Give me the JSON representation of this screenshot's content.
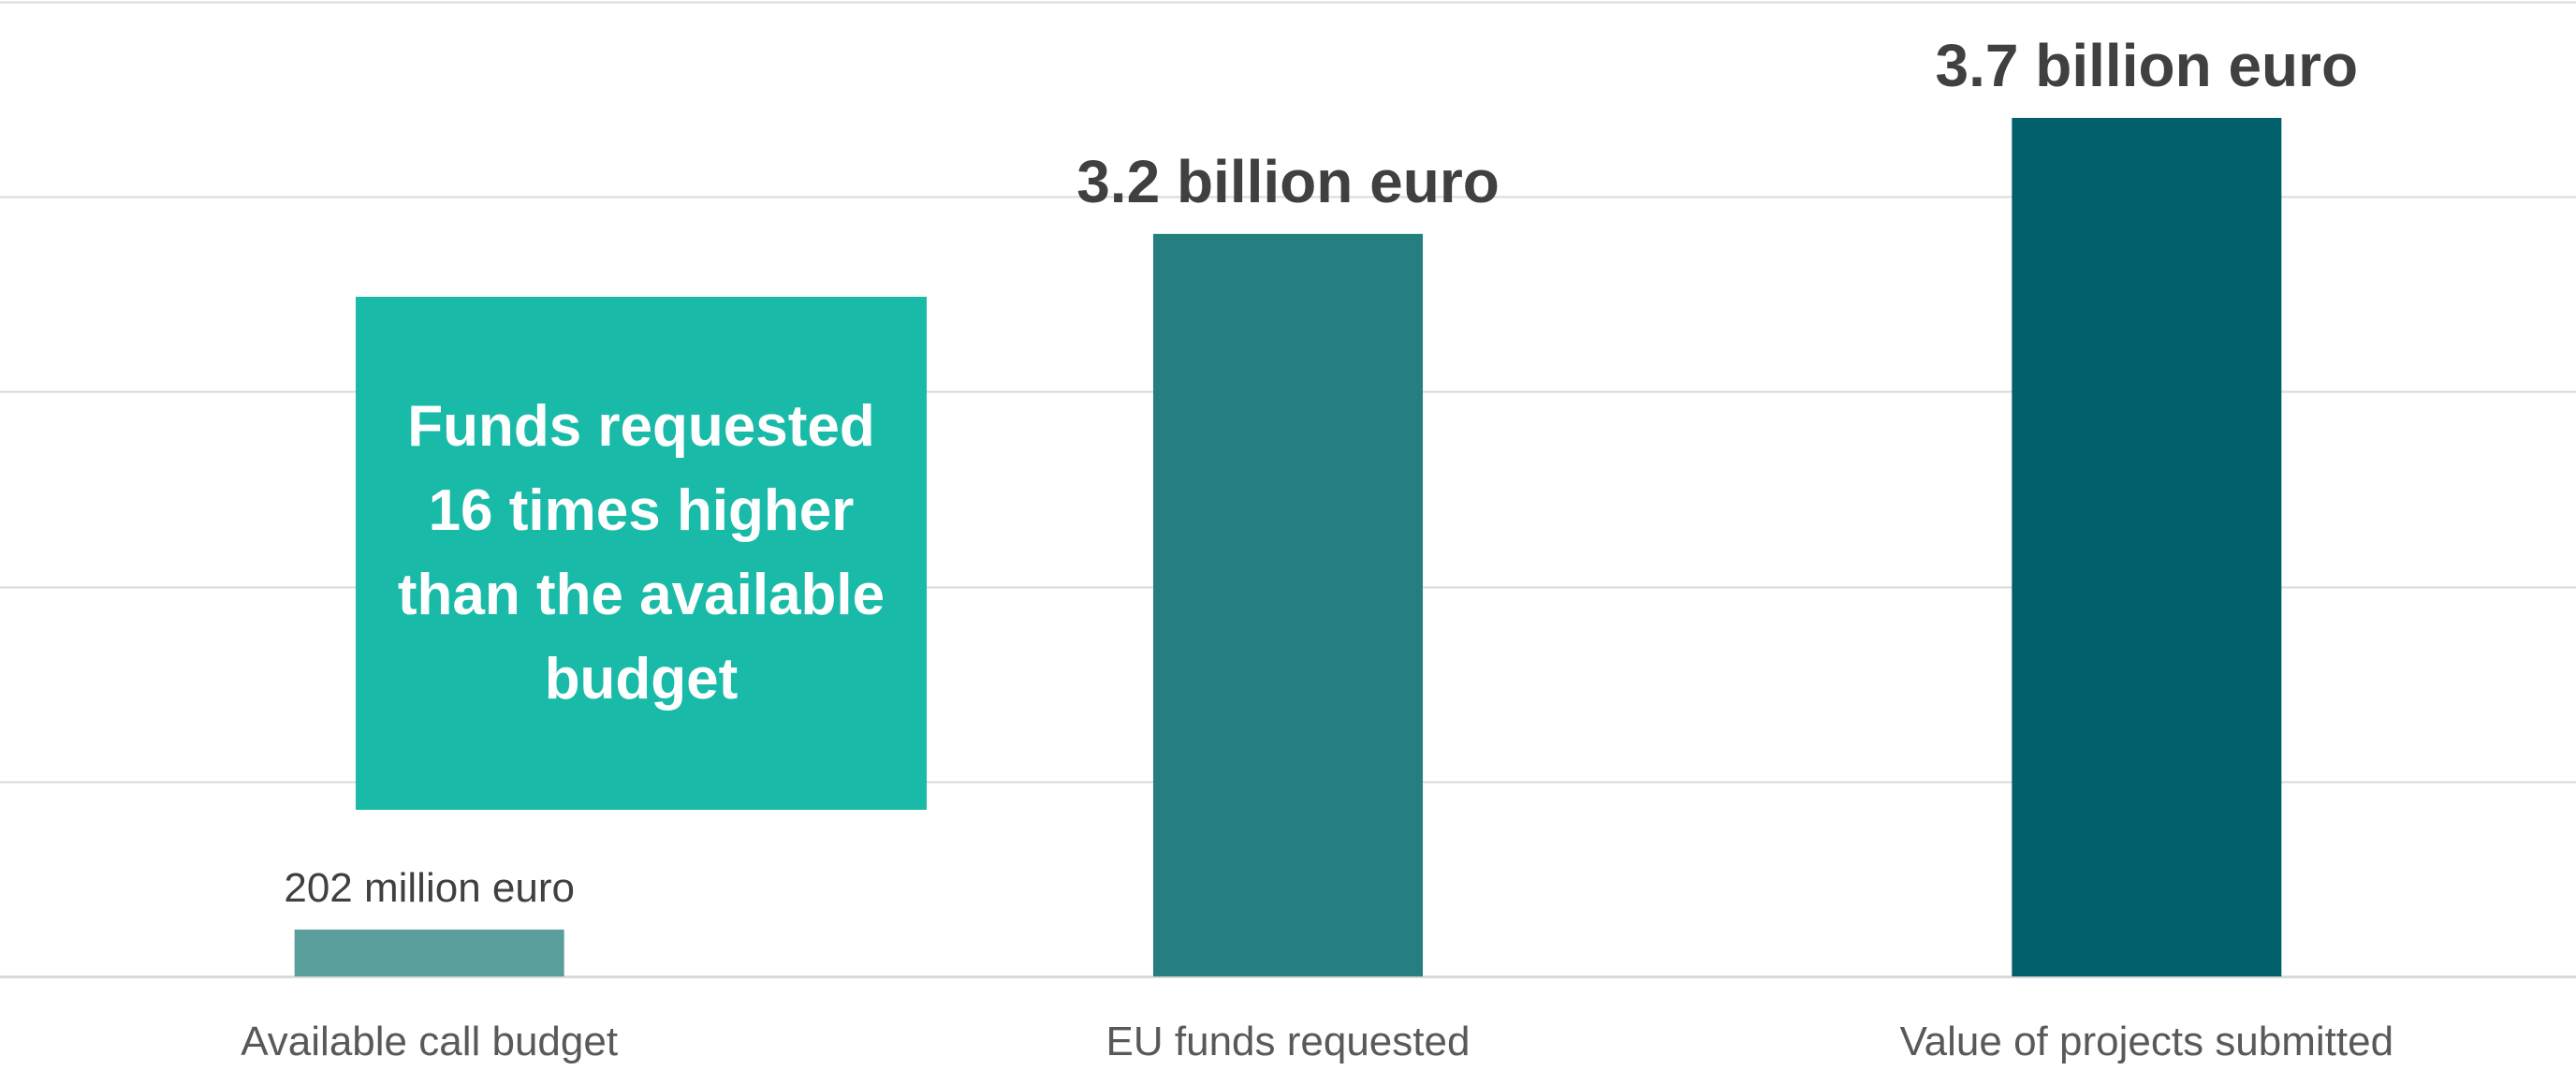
{
  "chart_data": {
    "type": "bar",
    "categories": [
      "Available call budget",
      "EU funds requested",
      "Value of projects submitted"
    ],
    "values": [
      0.202,
      3.2,
      3.7
    ],
    "data_labels": [
      "202 million euro",
      "3.2 billion euro",
      "3.7 billion euro"
    ],
    "bar_colors": [
      "#5a9e9b",
      "#257f80",
      "#02606c"
    ],
    "title": "",
    "xlabel": "",
    "ylabel": "",
    "ylim": [
      0,
      4.2
    ],
    "gridlines": [
      0,
      0.84,
      1.68,
      2.52,
      3.36,
      4.2
    ],
    "grid": true,
    "legend": "none",
    "annotation": "Funds requested\n16 times higher\nthan the available\nbudget",
    "annotation_color": "#1abaa8",
    "label_color": "#404040",
    "grid_color": "#d9d9d9"
  }
}
